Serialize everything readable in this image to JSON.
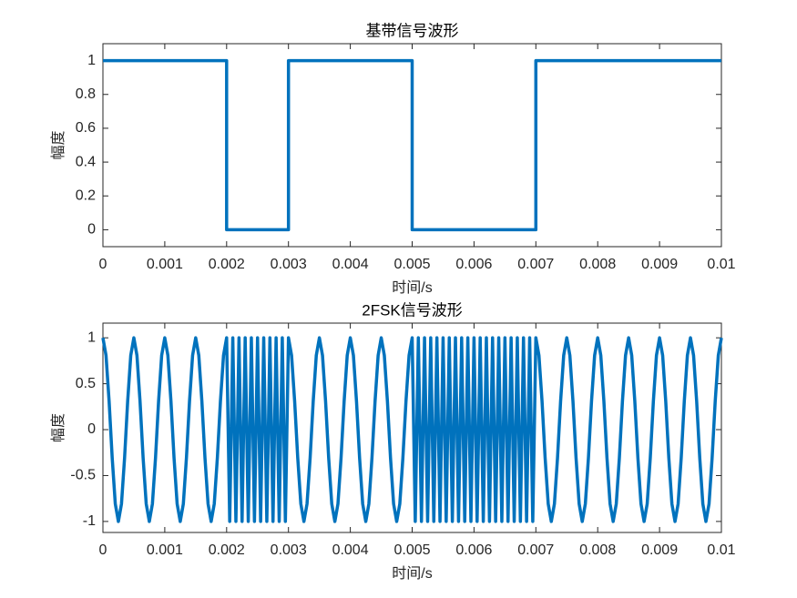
{
  "chart_data": [
    {
      "type": "line",
      "title": "基带信号波形",
      "xlabel": "时间/s",
      "ylabel": "幅度",
      "color": "#0072BD",
      "x": [
        0,
        0.002,
        0.002,
        0.003,
        0.003,
        0.005,
        0.005,
        0.007,
        0.007,
        0.01
      ],
      "values": [
        1,
        1,
        0,
        0,
        1,
        1,
        0,
        0,
        1,
        1
      ],
      "xlim": [
        0,
        0.01
      ],
      "xticks": [
        0,
        0.001,
        0.002,
        0.003,
        0.004,
        0.005,
        0.006,
        0.007,
        0.008,
        0.009,
        0.01
      ],
      "ylim": [
        -0.1,
        1.1
      ],
      "yticks": [
        0,
        0.2,
        0.4,
        0.6,
        0.8,
        1
      ],
      "grid": false
    },
    {
      "type": "line",
      "title": "2FSK信号波形",
      "xlabel": "时间/s",
      "ylabel": "幅度",
      "color": "#0072BD",
      "x": [
        0,
        5e-05,
        0.0001,
        0.00015,
        0.0002,
        0.00025,
        0.0003,
        0.00035,
        0.0004,
        0.00045,
        0.0005,
        0.00055,
        0.0006,
        0.00065,
        0.0007,
        0.00075,
        0.0008,
        0.00085,
        0.0009,
        0.00095,
        0.001,
        0.00105,
        0.0011,
        0.00115,
        0.0012,
        0.00125,
        0.0013,
        0.00135,
        0.0014,
        0.00145,
        0.0015,
        0.00155,
        0.0016,
        0.00165,
        0.0017,
        0.00175,
        0.0018,
        0.00185,
        0.0019,
        0.00195,
        0.002,
        0.00205,
        0.0021,
        0.00215,
        0.0022,
        0.00225,
        0.0023,
        0.00235,
        0.0024,
        0.00245,
        0.0025,
        0.00255,
        0.0026,
        0.00265,
        0.0027,
        0.00275,
        0.0028,
        0.00285,
        0.0029,
        0.00295,
        0.003,
        0.00305,
        0.0031,
        0.00315,
        0.0032,
        0.00325,
        0.0033,
        0.00335,
        0.0034,
        0.00345,
        0.0035,
        0.00355,
        0.0036,
        0.00365,
        0.0037,
        0.00375,
        0.0038,
        0.00385,
        0.0039,
        0.00395,
        0.004,
        0.00405,
        0.0041,
        0.00415,
        0.0042,
        0.00425,
        0.0043,
        0.00435,
        0.0044,
        0.00445,
        0.0045,
        0.00455,
        0.0046,
        0.00465,
        0.0047,
        0.00475,
        0.0048,
        0.00485,
        0.0049,
        0.00495,
        0.005,
        0.00505,
        0.0051,
        0.00515,
        0.0052,
        0.00525,
        0.0053,
        0.00535,
        0.0054,
        0.00545,
        0.0055,
        0.00555,
        0.0056,
        0.00565,
        0.0057,
        0.00575,
        0.0058,
        0.00585,
        0.0059,
        0.00595,
        0.006,
        0.00605,
        0.0061,
        0.00615,
        0.0062,
        0.00625,
        0.0063,
        0.00635,
        0.0064,
        0.00645,
        0.0065,
        0.00655,
        0.0066,
        0.00665,
        0.0067,
        0.00675,
        0.0068,
        0.00685,
        0.0069,
        0.00695,
        0.007,
        0.00705,
        0.0071,
        0.00715,
        0.0072,
        0.00725,
        0.0073,
        0.00735,
        0.0074,
        0.00745,
        0.0075,
        0.00755,
        0.0076,
        0.00765,
        0.0077,
        0.00775,
        0.0078,
        0.00785,
        0.0079,
        0.00795,
        0.008,
        0.00805,
        0.0081,
        0.00815,
        0.0082,
        0.00825,
        0.0083,
        0.00835,
        0.0084,
        0.00845,
        0.0085,
        0.00855,
        0.0086,
        0.00865,
        0.0087,
        0.00875,
        0.0088,
        0.00885,
        0.0089,
        0.00895,
        0.009,
        0.00905,
        0.0091,
        0.00915,
        0.0092,
        0.00925,
        0.0093,
        0.00935,
        0.0094,
        0.00945,
        0.0095,
        0.00955,
        0.0096,
        0.00965,
        0.0097,
        0.00975,
        0.0098,
        0.00985,
        0.0099,
        0.00995,
        0.01
      ],
      "values": [
        1,
        0.809,
        0.309,
        -0.309,
        -0.809,
        -1,
        -0.809,
        -0.309,
        0.309,
        0.809,
        1,
        0.809,
        0.309,
        -0.309,
        -0.809,
        -1,
        -0.809,
        -0.309,
        0.309,
        0.809,
        1,
        0.809,
        0.309,
        -0.309,
        -0.809,
        -1,
        -0.809,
        -0.309,
        0.309,
        0.809,
        1,
        0.809,
        0.309,
        -0.309,
        -0.809,
        -1,
        -0.809,
        -0.309,
        0.309,
        0.809,
        1,
        -1,
        1,
        -1,
        1,
        -1,
        1,
        -1,
        1,
        -1,
        1,
        -1,
        1,
        -1,
        1,
        -1,
        1,
        -1,
        1,
        -1,
        1,
        0.809,
        0.309,
        -0.309,
        -0.809,
        -1,
        -0.809,
        -0.309,
        0.309,
        0.809,
        1,
        0.809,
        0.309,
        -0.309,
        -0.809,
        -1,
        -0.809,
        -0.309,
        0.309,
        0.809,
        1,
        0.809,
        0.309,
        -0.309,
        -0.809,
        -1,
        -0.809,
        -0.309,
        0.309,
        0.809,
        1,
        0.809,
        0.309,
        -0.309,
        -0.809,
        -1,
        -0.809,
        -0.309,
        0.309,
        0.809,
        1,
        -1,
        1,
        -1,
        1,
        -1,
        1,
        -1,
        1,
        -1,
        1,
        -1,
        1,
        -1,
        1,
        -1,
        1,
        -1,
        1,
        -1,
        1,
        -1,
        1,
        -1,
        1,
        -1,
        1,
        -1,
        1,
        -1,
        1,
        -1,
        1,
        -1,
        1,
        -1,
        1,
        -1,
        1,
        -1,
        1,
        0.809,
        0.309,
        -0.309,
        -0.809,
        -1,
        -0.809,
        -0.309,
        0.309,
        0.809,
        1,
        0.809,
        0.309,
        -0.309,
        -0.809,
        -1,
        -0.809,
        -0.309,
        0.309,
        0.809,
        1,
        0.809,
        0.309,
        -0.309,
        -0.809,
        -1,
        -0.809,
        -0.309,
        0.309,
        0.809,
        1,
        0.809,
        0.309,
        -0.309,
        -0.809,
        -1,
        -0.809,
        -0.309,
        0.309,
        0.809,
        1,
        0.809,
        0.309,
        -0.309,
        -0.809,
        -1,
        -0.809,
        -0.309,
        0.309,
        0.809,
        1,
        0.809,
        0.309,
        -0.309,
        -0.809,
        -1,
        -0.809,
        -0.309,
        0.309,
        0.809,
        1
      ],
      "xlim": [
        0,
        0.01
      ],
      "xticks": [
        0,
        0.001,
        0.002,
        0.003,
        0.004,
        0.005,
        0.006,
        0.007,
        0.008,
        0.009,
        0.01
      ],
      "ylim": [
        -1.12,
        1.16
      ],
      "yticks": [
        -1,
        -0.5,
        0,
        0.5,
        1
      ],
      "grid": false
    }
  ]
}
